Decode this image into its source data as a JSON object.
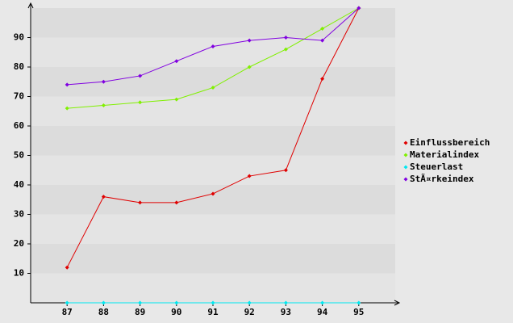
{
  "chart_data": {
    "type": "line",
    "categories": [
      "87",
      "88",
      "89",
      "90",
      "91",
      "92",
      "93",
      "94",
      "95"
    ],
    "series": [
      {
        "name": "Einflussbereich",
        "color": "#e00000",
        "values": [
          12,
          36,
          34,
          34,
          37,
          43,
          45,
          76,
          100
        ]
      },
      {
        "name": "Materialindex",
        "color": "#80f000",
        "values": [
          66,
          67,
          68,
          69,
          73,
          80,
          86,
          93,
          100
        ]
      },
      {
        "name": "Steuerlast",
        "color": "#00e8f0",
        "values": [
          0,
          0,
          0,
          0,
          0,
          0,
          0,
          0,
          0
        ]
      },
      {
        "name": "StÃ¤rkeindex",
        "color": "#8000e0",
        "values": [
          74,
          75,
          77,
          82,
          87,
          89,
          90,
          89,
          100
        ]
      }
    ],
    "ylim": [
      0,
      100
    ],
    "yticks": [
      10,
      20,
      30,
      40,
      50,
      60,
      70,
      80,
      90
    ],
    "grid": true,
    "legend": "right"
  }
}
